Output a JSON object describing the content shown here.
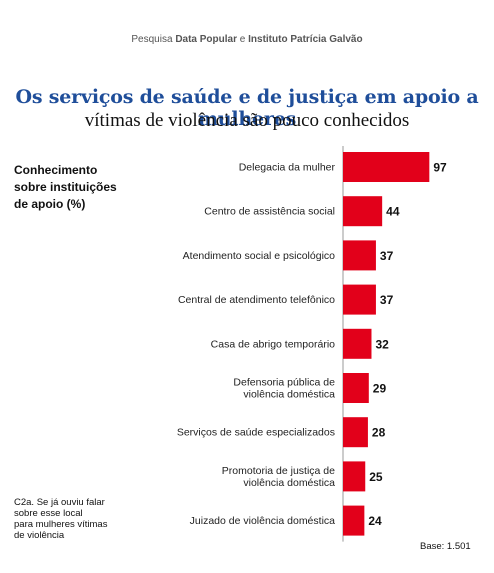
{
  "header": {
    "source_prefix": "Pesquisa ",
    "source_org1": "Data Popular",
    "source_conj": " e ",
    "source_org2": "Instituto Patrícia Galvão",
    "title_line1": "Os serviços de saúde e de justiça em apoio a mulheres",
    "title_line2": "vítimas de violência são pouco conhecidos"
  },
  "side_label": [
    "Conhecimento",
    "sobre instituições",
    "de apoio (%)"
  ],
  "note": [
    "C2a. Se já ouviu falar",
    "sobre esse local",
    "para mulheres vítimas",
    "de violência"
  ],
  "base": "Base: 1.501",
  "colors": {
    "bar": "#e2001a",
    "title": "#1f4e9a",
    "axis": "#999999"
  },
  "chart_data": {
    "type": "bar",
    "orientation": "horizontal",
    "categories": [
      [
        "Delegacia da mulher"
      ],
      [
        "Centro de assistência social"
      ],
      [
        "Atendimento social e psicológico"
      ],
      [
        "Central de atendimento telefônico"
      ],
      [
        "Casa de abrigo temporário"
      ],
      [
        "Defensoria pública de",
        "violência doméstica"
      ],
      [
        "Serviços de saúde especializados"
      ],
      [
        "Promotoria de justiça de",
        "violência doméstica"
      ],
      [
        "Juizado de violência doméstica"
      ]
    ],
    "values": [
      97,
      44,
      37,
      37,
      32,
      29,
      28,
      25,
      24
    ],
    "xlim": [
      0,
      100
    ],
    "grid": false,
    "legend": "none"
  }
}
